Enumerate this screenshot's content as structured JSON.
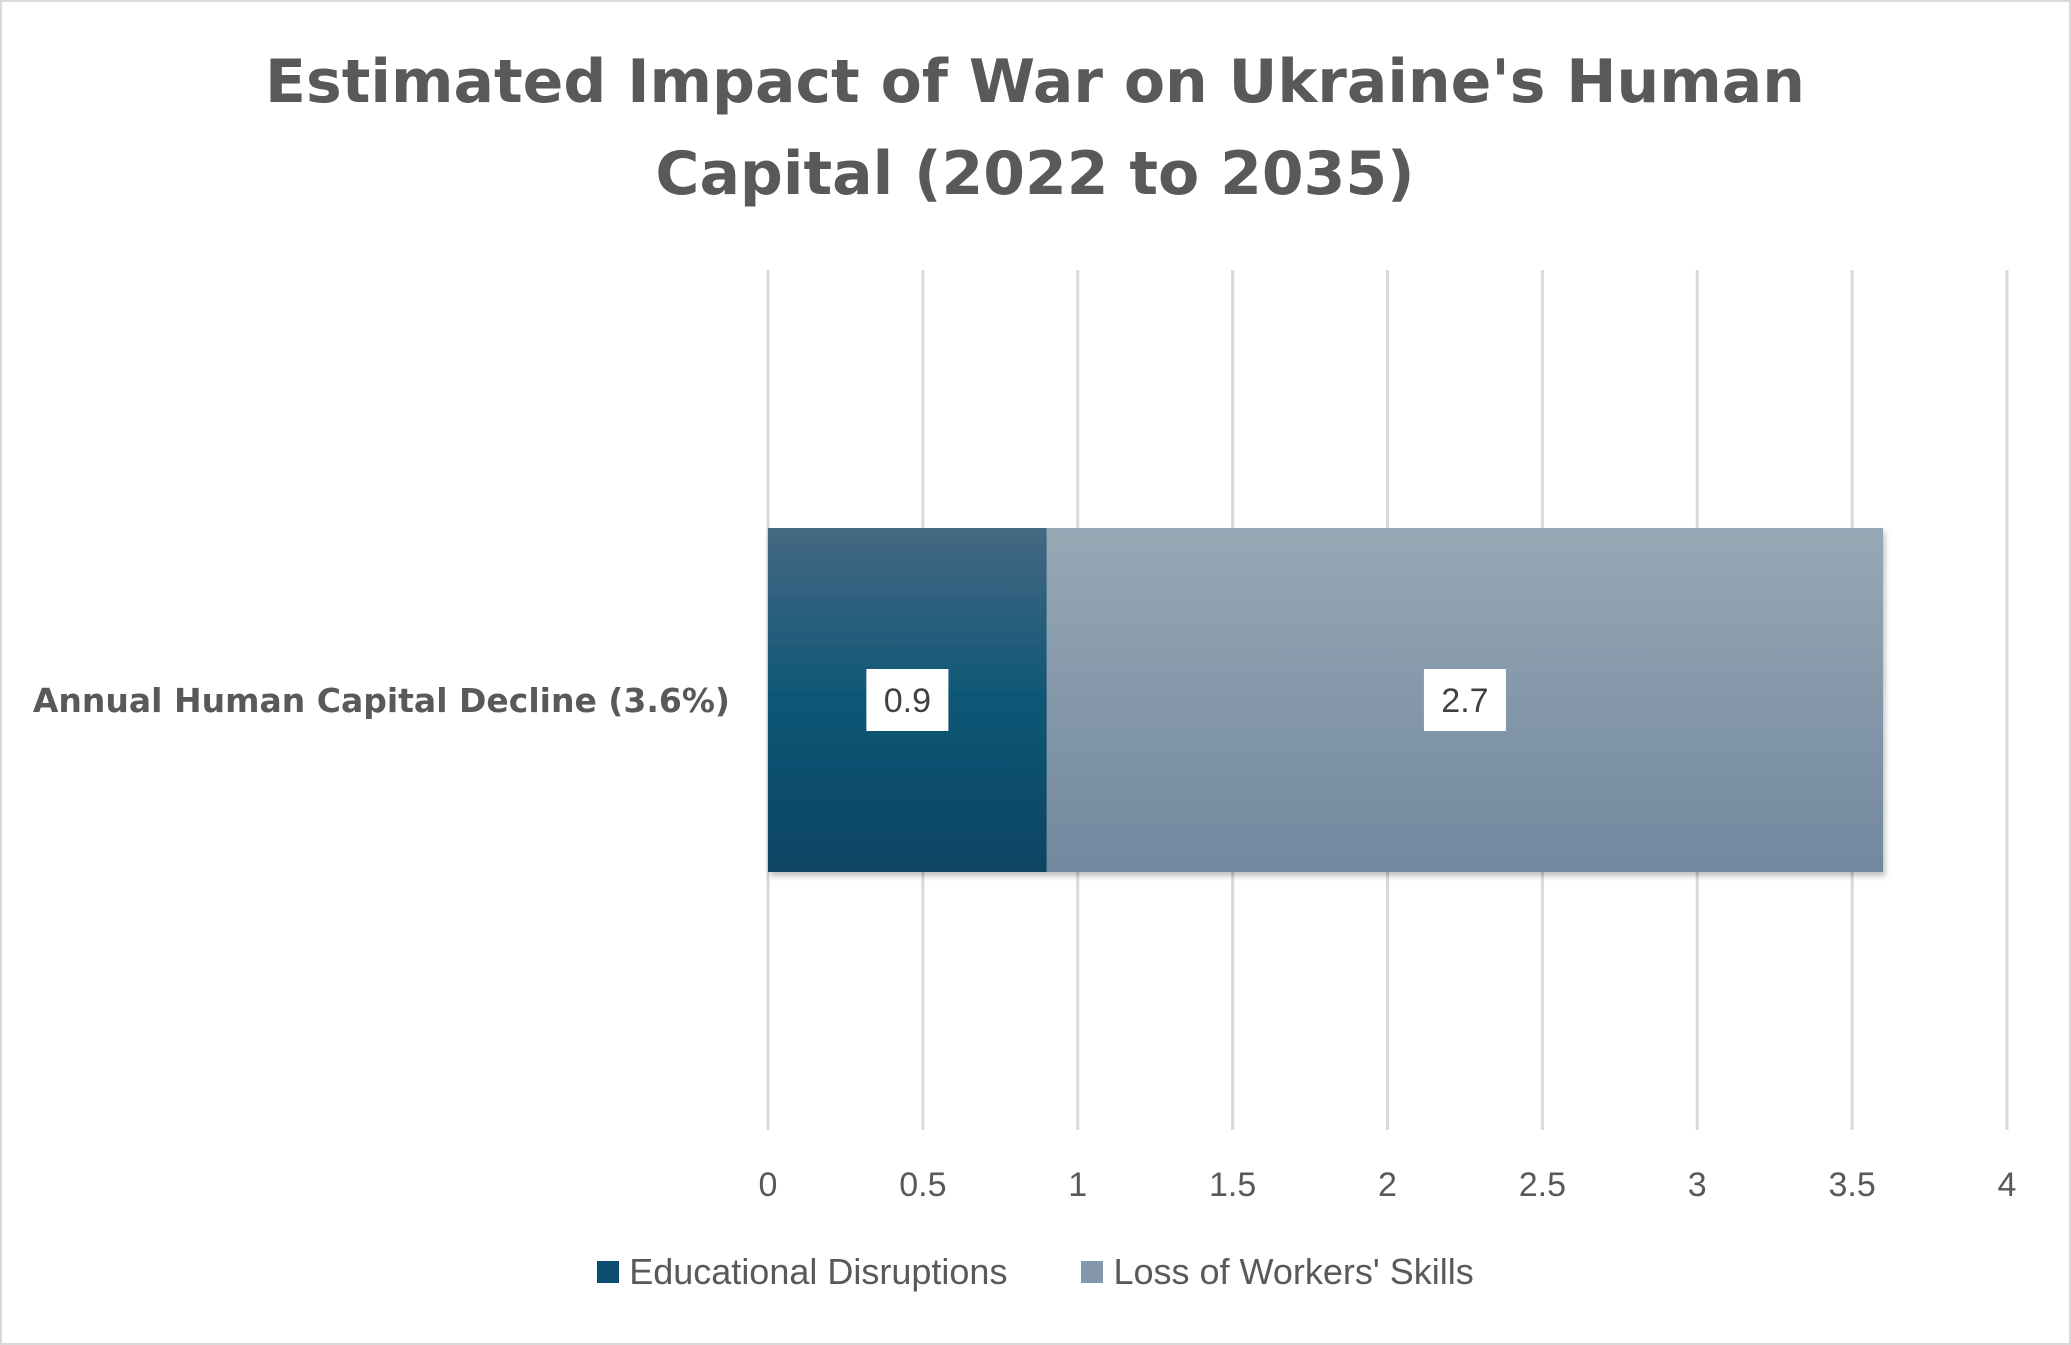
{
  "chart_data": {
    "type": "bar",
    "orientation": "horizontal",
    "stacked": true,
    "title": "Estimated Impact of War on Ukraine's Human Capital (2022 to 2035)",
    "categories": [
      "Annual Human Capital Decline (3.6%)"
    ],
    "series": [
      {
        "name": "Educational Disruptions",
        "values": [
          0.9
        ],
        "color": "#0b4d6e"
      },
      {
        "name": "Loss of Workers' Skills",
        "values": [
          2.7
        ],
        "color": "#8397a8"
      }
    ],
    "xlim": [
      0,
      4
    ],
    "xticks": [
      "0",
      "0.5",
      "1",
      "1.5",
      "2",
      "2.5",
      "3",
      "3.5",
      "4"
    ],
    "data_labels": [
      "0.9",
      "2.7"
    ],
    "grid": "vertical",
    "legend": "bottom",
    "xlabel": "",
    "ylabel": ""
  },
  "colors": {
    "title": "#595959",
    "axis_text": "#595959",
    "gridline": "#d9d9d9",
    "border": "#d9d9d9"
  }
}
